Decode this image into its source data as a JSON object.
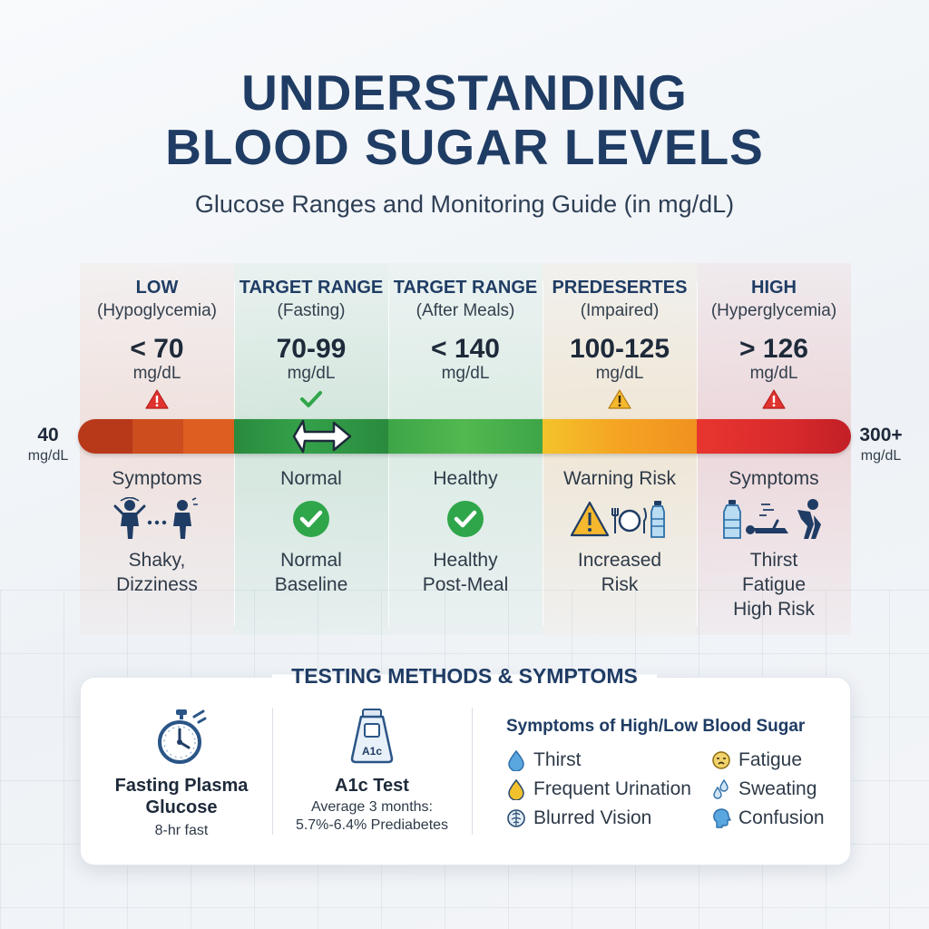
{
  "header": {
    "title_line1": "UNDERSTANDING",
    "title_line2": "BLOOD SUGAR LEVELS",
    "subtitle": "Glucose Ranges and Monitoring Guide (in mg/dL)"
  },
  "scale": {
    "min_value": "40",
    "min_unit": "mg/dL",
    "max_value": "300+",
    "max_unit": "mg/dL"
  },
  "ranges": [
    {
      "title": "LOW",
      "subtitle": "(Hypoglycemia)",
      "value": "< 70",
      "unit": "mg/dL",
      "marker": "warning-icon",
      "status": "Symptoms",
      "icons": "shaky-person-icon",
      "desc1": "Shaky,",
      "desc2": "Dizziness",
      "desc3": ""
    },
    {
      "title": "TARGET RANGE",
      "subtitle": "(Fasting)",
      "value": "70-99",
      "unit": "mg/dL",
      "marker": "check-icon",
      "status": "Normal",
      "icons": "check-circle-icon",
      "desc1": "Normal",
      "desc2": "Baseline",
      "desc3": ""
    },
    {
      "title": "TARGET RANGE",
      "subtitle": "(After Meals)",
      "value": "< 140",
      "unit": "mg/dL",
      "marker": "",
      "status": "Healthy",
      "icons": "check-circle-icon",
      "desc1": "Healthy",
      "desc2": "Post-Meal",
      "desc3": ""
    },
    {
      "title": "PREDESERTES",
      "subtitle": "(Impaired)",
      "value": "100-125",
      "unit": "mg/dL",
      "marker": "warning-icon",
      "status": "Warning Risk",
      "icons": "warning-meal-bottle-icons",
      "desc1": "Increased",
      "desc2": "Risk",
      "desc3": ""
    },
    {
      "title": "HIGH",
      "subtitle": "(Hyperglycemia)",
      "value": "> 126",
      "unit": "mg/dL",
      "marker": "warning-icon",
      "status": "Symptoms",
      "icons": "thirst-fatigue-icons",
      "desc1": "Thirst",
      "desc2": "Fatigue",
      "desc3": "High Risk"
    }
  ],
  "colors": {
    "title": "#1f3c64",
    "low": "#c94a1c",
    "target": "#2f9a48",
    "after_meals": "#45b24f",
    "impaired": "#f2a11f",
    "high": "#d8262c",
    "check": "#2fa64a"
  },
  "testing": {
    "title": "TESTING METHODS & SYMPTOMS",
    "fpg_title_1": "Fasting Plasma",
    "fpg_title_2": "Glucose",
    "fpg_sub": "8-hr fast",
    "fpg_icon": "stopwatch-icon",
    "a1c_title": "A1c Test",
    "a1c_sub1": "Average 3 months:",
    "a1c_sub2": "5.7%-6.4% Prediabetes",
    "a1c_icon_label": "A1c",
    "symptoms_title": "Symptoms of High/Low Blood Sugar",
    "symptoms": [
      {
        "label": "Thirst",
        "icon": "water-drop-icon"
      },
      {
        "label": "Frequent Urination",
        "icon": "yellow-drop-icon"
      },
      {
        "label": "Blurred Vision",
        "icon": "brain-icon"
      },
      {
        "label": "Fatigue",
        "icon": "tired-face-icon"
      },
      {
        "label": "Sweating",
        "icon": "sweat-drops-icon"
      },
      {
        "label": "Confusion",
        "icon": "head-profile-icon"
      }
    ]
  }
}
